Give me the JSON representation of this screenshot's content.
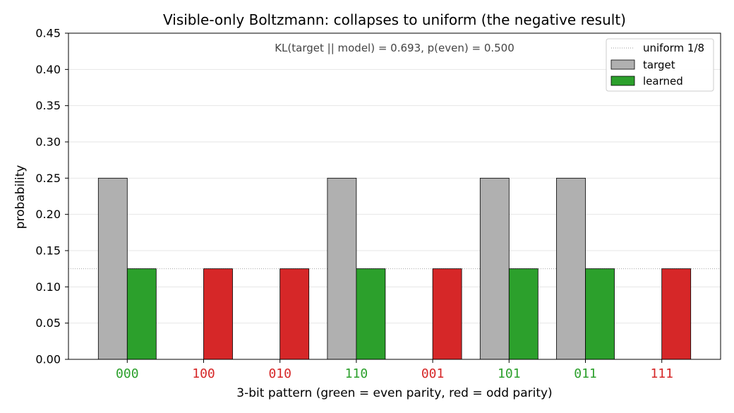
{
  "chart_data": {
    "type": "bar",
    "title": "Visible-only Boltzmann: collapses to uniform (the negative result)",
    "annotation": "KL(target || model) = 0.693, p(even) = 0.500",
    "xlabel": "3-bit pattern  (green = even parity, red = odd parity)",
    "ylabel": "probability",
    "ylim": [
      0,
      0.45
    ],
    "yticks": [
      "0.00",
      "0.05",
      "0.10",
      "0.15",
      "0.20",
      "0.25",
      "0.30",
      "0.35",
      "0.40",
      "0.45"
    ],
    "grid": "horizontal",
    "legend_position": "top-right",
    "categories": [
      "000",
      "100",
      "010",
      "110",
      "001",
      "101",
      "011",
      "111"
    ],
    "parity": [
      "even",
      "odd",
      "odd",
      "even",
      "odd",
      "even",
      "even",
      "odd"
    ],
    "series": [
      {
        "name": "target",
        "values": [
          0.25,
          0,
          0,
          0.25,
          0,
          0.25,
          0.25,
          0
        ]
      },
      {
        "name": "learned",
        "values": [
          0.125,
          0.125,
          0.125,
          0.125,
          0.125,
          0.125,
          0.125,
          0.125
        ]
      }
    ],
    "reference_line": {
      "name": "uniform 1/8",
      "value": 0.125
    },
    "colors": {
      "target": "#b0b0b0",
      "even": "#2ca02c",
      "odd": "#d62728",
      "grid": "#e6e6e6",
      "reference": "#999999"
    }
  }
}
